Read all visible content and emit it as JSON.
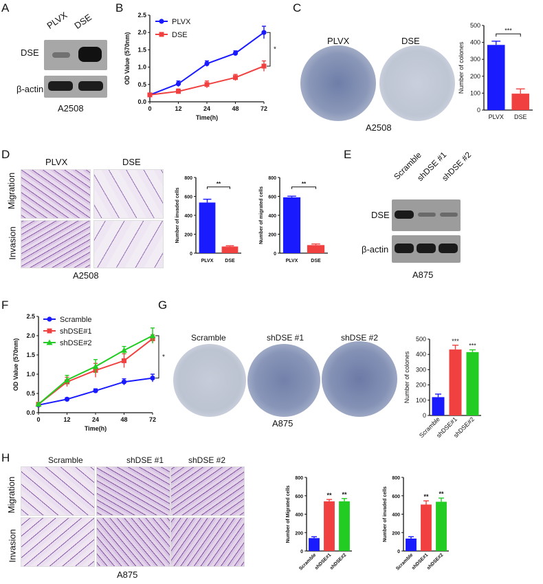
{
  "panels": {
    "A": {
      "letter": "A",
      "lanes": [
        "PLVX",
        "DSE"
      ],
      "rows": [
        "DSE",
        "β-actin"
      ],
      "caption": "A2508"
    },
    "B": {
      "letter": "B",
      "legend": [
        "PLVX",
        "DSE"
      ],
      "sig": "*"
    },
    "C": {
      "letter": "C",
      "plate_labels": [
        "PLVX",
        "DSE"
      ],
      "caption": "A2508",
      "sig": "***"
    },
    "D": {
      "letter": "D",
      "col_labels": [
        "PLVX",
        "DSE"
      ],
      "row_labels": [
        "Migration",
        "Invasion"
      ],
      "caption": "A2508",
      "sig1": "**",
      "sig2": "**"
    },
    "E": {
      "letter": "E",
      "lanes": [
        "Scramble",
        "shDSE #1",
        "shDSE #2"
      ],
      "rows": [
        "DSE",
        "β-actin"
      ],
      "caption": "A875"
    },
    "F": {
      "letter": "F",
      "legend": [
        "Scramble",
        "shDSE#1",
        "shDSE#2"
      ],
      "sig": "*"
    },
    "G": {
      "letter": "G",
      "plate_labels": [
        "Scramble",
        "shDSE #1",
        "shDSE #2"
      ],
      "caption": "A875",
      "sig": [
        "***",
        "***"
      ]
    },
    "H": {
      "letter": "H",
      "col_labels": [
        "Scramble",
        "shDSE #1",
        "shDSE #2"
      ],
      "row_labels": [
        "Migration",
        "Invasion"
      ],
      "caption": "A875",
      "sig": [
        "**",
        "**"
      ]
    }
  },
  "colors": {
    "blue": "#1a1aff",
    "red": "#f04040",
    "green": "#22cc22"
  },
  "chart_data": [
    {
      "id": "B",
      "type": "line",
      "xlabel": "Time(h)",
      "ylabel": "OD Value (570nm)",
      "x": [
        0,
        12,
        24,
        48,
        72
      ],
      "xticks": [
        "0",
        "12",
        "24",
        "48",
        "72"
      ],
      "ylim": [
        0,
        2.5
      ],
      "yticks": [
        "0.0",
        "0.5",
        "1.0",
        "1.5",
        "2.0",
        "2.5"
      ],
      "series": [
        {
          "name": "PLVX",
          "values": [
            0.2,
            0.52,
            1.1,
            1.4,
            2.0
          ],
          "err": [
            0.03,
            0.08,
            0.08,
            0.07,
            0.18
          ],
          "color": "#1a1aff",
          "marker": "circle"
        },
        {
          "name": "DSE",
          "values": [
            0.2,
            0.3,
            0.5,
            0.7,
            1.03
          ],
          "err": [
            0.03,
            0.07,
            0.1,
            0.09,
            0.15
          ],
          "color": "#f04040",
          "marker": "square"
        }
      ]
    },
    {
      "id": "C",
      "type": "bar",
      "ylabel": "Number of colones",
      "categories": [
        "PLVX",
        "DSE"
      ],
      "values": [
        385,
        97
      ],
      "err": [
        22,
        28
      ],
      "colors": [
        "#1a1aff",
        "#f04040"
      ],
      "ylim": [
        0,
        500
      ],
      "yticks": [
        "0",
        "100",
        "200",
        "300",
        "400",
        "500"
      ]
    },
    {
      "id": "D1",
      "type": "bar",
      "ylabel": "Number of invaded cells",
      "categories": [
        "PLVX",
        "DSE"
      ],
      "values": [
        535,
        70
      ],
      "err": [
        35,
        8
      ],
      "colors": [
        "#1a1aff",
        "#f04040"
      ],
      "ylim": [
        0,
        800
      ],
      "yticks": [
        "0",
        "200",
        "400",
        "600",
        "800"
      ]
    },
    {
      "id": "D2",
      "type": "bar",
      "ylabel": "Number of migrated cells",
      "categories": [
        "PLVX",
        "DSE"
      ],
      "values": [
        590,
        85
      ],
      "err": [
        12,
        12
      ],
      "colors": [
        "#1a1aff",
        "#f04040"
      ],
      "ylim": [
        0,
        800
      ],
      "yticks": [
        "0",
        "200",
        "400",
        "600",
        "800"
      ]
    },
    {
      "id": "F",
      "type": "line",
      "xlabel": "Time(h)",
      "ylabel": "OD Value (570nm)",
      "x": [
        0,
        12,
        24,
        48,
        72
      ],
      "xticks": [
        "0",
        "12",
        "24",
        "48",
        "72"
      ],
      "ylim": [
        0,
        2.5
      ],
      "yticks": [
        "0.0",
        "0.5",
        "1.0",
        "1.5",
        "2.0",
        "2.5"
      ],
      "series": [
        {
          "name": "Scramble",
          "values": [
            0.2,
            0.35,
            0.57,
            0.8,
            0.9
          ],
          "err": [
            0.03,
            0.04,
            0.05,
            0.08,
            0.1
          ],
          "color": "#1a1aff",
          "marker": "circle"
        },
        {
          "name": "shDSE#1",
          "values": [
            0.22,
            0.8,
            1.1,
            1.35,
            1.92
          ],
          "err": [
            0.03,
            0.12,
            0.18,
            0.18,
            0.1
          ],
          "color": "#f04040",
          "marker": "square"
        },
        {
          "name": "shDSE#2",
          "values": [
            0.22,
            0.85,
            1.2,
            1.62,
            2.0
          ],
          "err": [
            0.03,
            0.12,
            0.18,
            0.1,
            0.2
          ],
          "color": "#22cc22",
          "marker": "triangle"
        }
      ]
    },
    {
      "id": "G",
      "type": "bar",
      "ylabel": "Number of colones",
      "categories": [
        "Scramble",
        "shDSE#1",
        "shDSE#2"
      ],
      "values": [
        120,
        432,
        415
      ],
      "err": [
        20,
        28,
        15
      ],
      "colors": [
        "#1a1aff",
        "#f04040",
        "#22cc22"
      ],
      "ylim": [
        0,
        500
      ],
      "yticks": [
        "0",
        "100",
        "200",
        "300",
        "400",
        "500"
      ]
    },
    {
      "id": "H1",
      "type": "bar",
      "ylabel": "Number of Migrated cells",
      "categories": [
        "Scramble",
        "shDSE#1",
        "shDSE#2"
      ],
      "values": [
        140,
        540,
        540
      ],
      "err": [
        15,
        20,
        30
      ],
      "colors": [
        "#1a1aff",
        "#f04040",
        "#22cc22"
      ],
      "ylim": [
        0,
        800
      ],
      "yticks": [
        "0",
        "200",
        "400",
        "600",
        "800"
      ]
    },
    {
      "id": "H2",
      "type": "bar",
      "ylabel": "Number of invaded cells",
      "categories": [
        "Scramble",
        "shDSE#1",
        "shDSE#2"
      ],
      "values": [
        135,
        505,
        535
      ],
      "err": [
        20,
        40,
        40
      ],
      "colors": [
        "#1a1aff",
        "#f04040",
        "#22cc22"
      ],
      "ylim": [
        0,
        800
      ],
      "yticks": [
        "0",
        "200",
        "400",
        "600",
        "800"
      ]
    }
  ]
}
